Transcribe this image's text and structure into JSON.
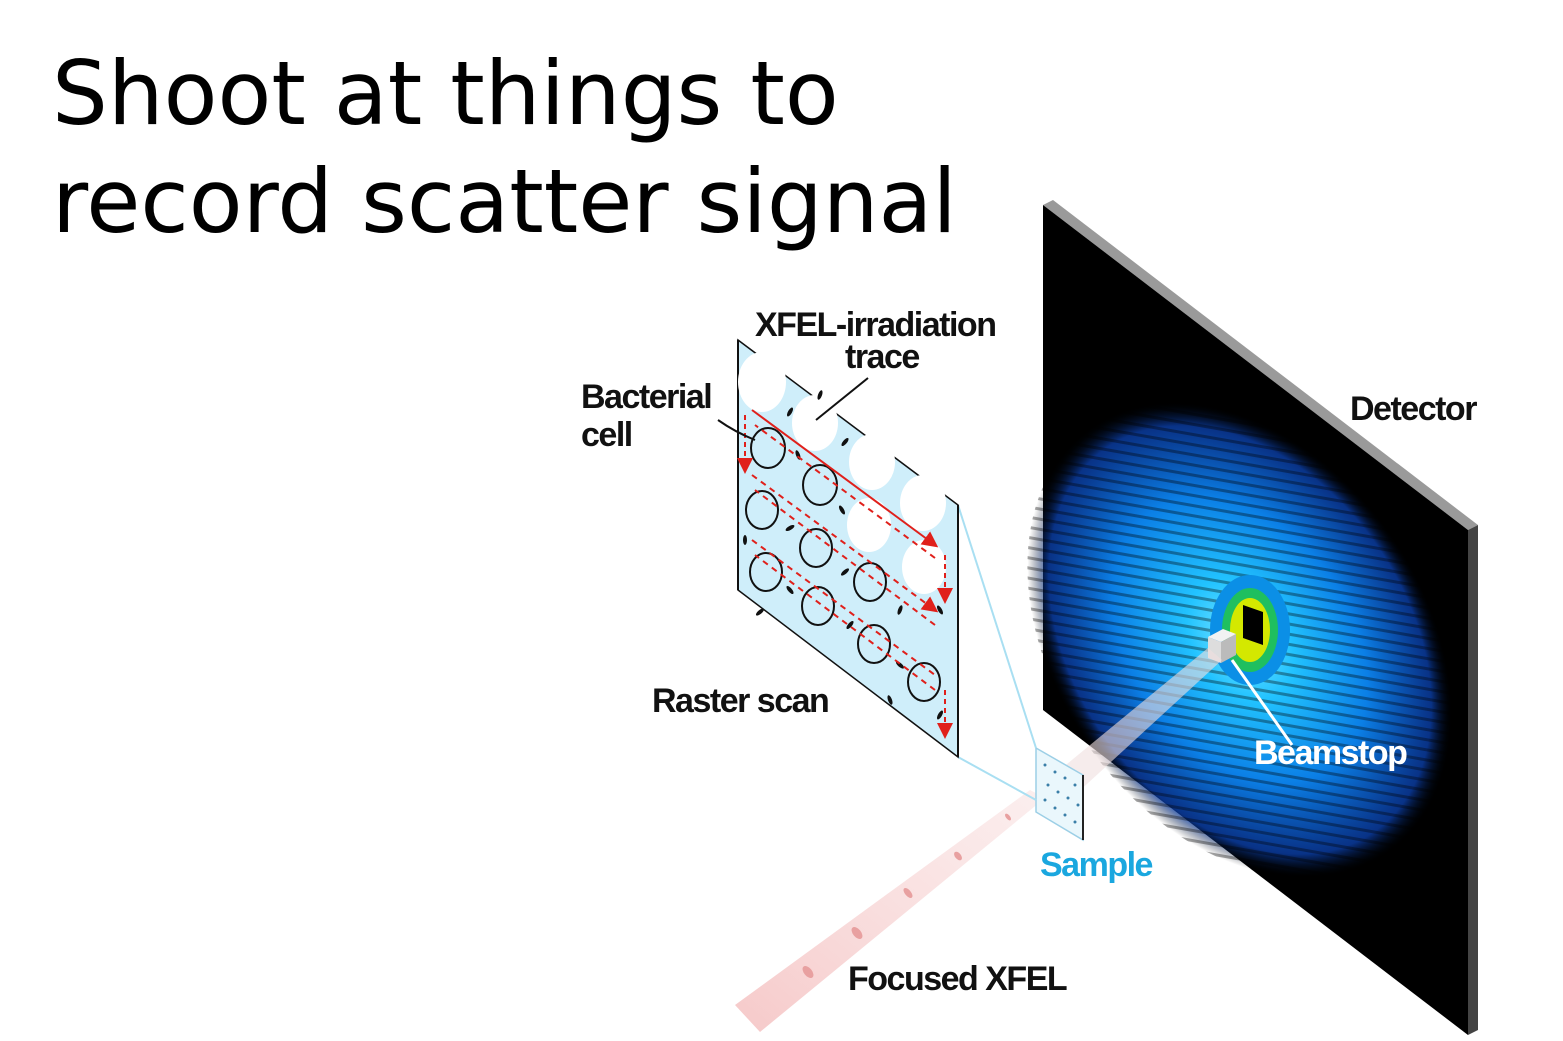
{
  "slide": {
    "title_line1": "Shoot at things to",
    "title_line2": "record scatter signal"
  },
  "diagram": {
    "labels": {
      "xfel_trace_line1": "XFEL-irradiation",
      "xfel_trace_line2": "trace",
      "bacterial_line1": "Bacterial",
      "bacterial_line2": "cell",
      "detector": "Detector",
      "raster_scan": "Raster scan",
      "beamstop": "Beamstop",
      "sample": "Sample",
      "focused_xfel": "Focused XFEL"
    },
    "colors": {
      "text": "#111111",
      "sample_label": "#1aa7df",
      "beamstop_label": "#ffffff",
      "panel_fill": "#cfeefa",
      "detector_face": "#000000",
      "detector_edge": "#8a8a8a",
      "scatter_outer": "#0b5fd6",
      "scatter_inner": "#22c3ff",
      "scatter_center_ring": "#d4e800",
      "raster_arrow": "#e0201b",
      "beam": "#f7cfcf"
    }
  }
}
